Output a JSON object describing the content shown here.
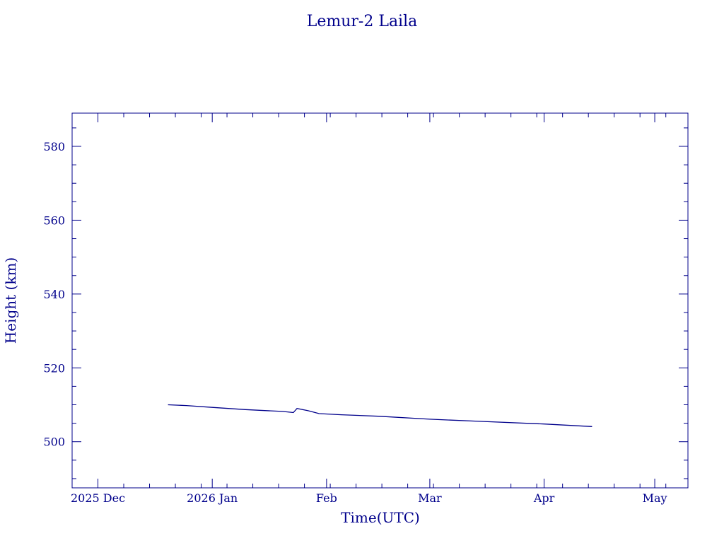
{
  "colors": {
    "ink": "#00008b",
    "background": "#ffffff"
  },
  "chart_data": {
    "type": "line",
    "title": "Lemur-2 Laila",
    "xlabel": "Time(UTC)",
    "ylabel": "Height (km)",
    "x_ticks": [
      {
        "label": "2025 Dec",
        "date": "2025-12-01"
      },
      {
        "label": "2026 Jan",
        "date": "2026-01-01"
      },
      {
        "label": "Feb",
        "date": "2026-02-01"
      },
      {
        "label": "Mar",
        "date": "2026-03-01"
      },
      {
        "label": "Apr",
        "date": "2026-04-01"
      },
      {
        "label": "May",
        "date": "2026-05-01"
      }
    ],
    "xlim": [
      "2025-11-24",
      "2026-05-10"
    ],
    "ylim": [
      487.5,
      589
    ],
    "y_ticks": [
      500,
      520,
      540,
      560,
      580
    ],
    "y_minor_step": 5,
    "x_minor_step_days": 7,
    "grid": false,
    "series": [
      {
        "x": [
          "2025-12-20",
          "2025-12-25",
          "2026-01-01",
          "2026-01-10",
          "2026-01-20",
          "2026-01-23",
          "2026-01-24",
          "2026-01-27",
          "2026-01-30",
          "2026-02-05",
          "2026-02-15",
          "2026-03-01",
          "2026-03-15",
          "2026-04-01",
          "2026-04-14"
        ],
        "y": [
          510.0,
          509.8,
          509.3,
          508.7,
          508.2,
          507.9,
          509.0,
          508.4,
          507.6,
          507.3,
          506.9,
          506.1,
          505.5,
          504.8,
          504.1
        ]
      }
    ]
  }
}
